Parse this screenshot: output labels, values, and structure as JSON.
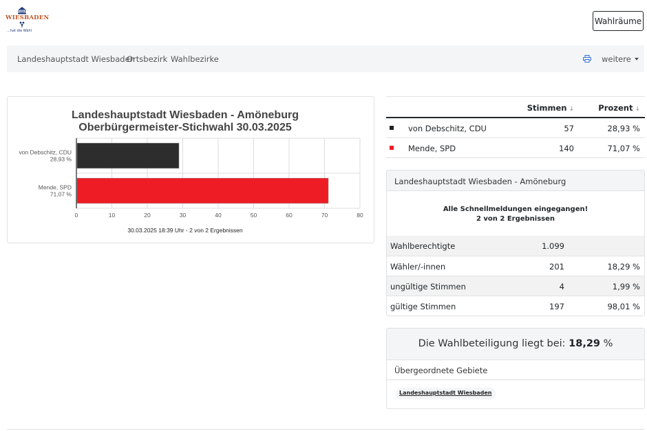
{
  "logo": {
    "name": "WIESBADEN",
    "tagline": "...hat die Wahl"
  },
  "header": {
    "wahlraeume_label": "Wahlräume"
  },
  "nav": {
    "items": [
      "Landeshauptstadt Wiesbaden",
      "Ortsbezirk",
      "Wahlbezirke"
    ],
    "print_icon": "printer-icon",
    "more_label": "weitere"
  },
  "chart_data": {
    "type": "bar",
    "orientation": "horizontal",
    "title": "Landeshauptstadt Wiesbaden - Amöneburg",
    "subtitle": "Oberbürgermeister-Stichwahl 30.03.2025",
    "categories": [
      "von Debschitz, CDU",
      "Mende, SPD"
    ],
    "category_values_text": [
      "28,93 %",
      "71,07 %"
    ],
    "values": [
      28.93,
      71.07
    ],
    "colors": [
      "#2d2d2d",
      "#ee1c24"
    ],
    "xlim": [
      0,
      80
    ],
    "xticks": [
      0,
      10,
      20,
      30,
      40,
      50,
      60,
      70,
      80
    ],
    "grid": true,
    "footer": "30.03.2025 18:39 Uhr - 2 von 2 Ergebnissen"
  },
  "results": {
    "col_votes": "Stimmen",
    "col_percent": "Prozent",
    "sort_arrow": "↓",
    "rows": [
      {
        "name": "von Debschitz, CDU",
        "votes": "57",
        "percent": "28,93 %",
        "color": "#212121"
      },
      {
        "name": "Mende, SPD",
        "votes": "140",
        "percent": "71,07 %",
        "color": "#ee1c24"
      }
    ]
  },
  "summary": {
    "title": "Landeshauptstadt Wiesbaden - Amöneburg",
    "status_line1": "Alle Schnellmeldungen eingegangen!",
    "status_line2": "2 von 2 Ergebnissen",
    "rows": [
      {
        "label": "Wahlberechtigte",
        "value": "1.099",
        "percent": ""
      },
      {
        "label": "Wähler/-innen",
        "value": "201",
        "percent": "18,29 %"
      },
      {
        "label": "ungültige Stimmen",
        "value": "4",
        "percent": "1,99 %"
      },
      {
        "label": "gültige Stimmen",
        "value": "197",
        "percent": "98,01 %"
      }
    ]
  },
  "turnout": {
    "text": "Die Wahlbeteiligung liegt bei:",
    "value": "18,29",
    "unit": "%"
  },
  "parent_areas": {
    "title": "Übergeordnete Gebiete",
    "link": "Landeshauptstadt Wiesbaden"
  }
}
